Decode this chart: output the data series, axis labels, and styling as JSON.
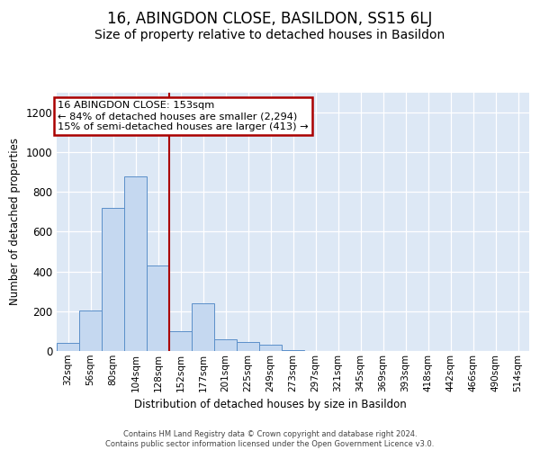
{
  "title": "16, ABINGDON CLOSE, BASILDON, SS15 6LJ",
  "subtitle": "Size of property relative to detached houses in Basildon",
  "xlabel": "Distribution of detached houses by size in Basildon",
  "ylabel": "Number of detached properties",
  "footer_line1": "Contains HM Land Registry data © Crown copyright and database right 2024.",
  "footer_line2": "Contains public sector information licensed under the Open Government Licence v3.0.",
  "annotation_line1": "16 ABINGDON CLOSE: 153sqm",
  "annotation_line2": "← 84% of detached houses are smaller (2,294)",
  "annotation_line3": "15% of semi-detached houses are larger (413) →",
  "bar_labels": [
    "32sqm",
    "56sqm",
    "80sqm",
    "104sqm",
    "128sqm",
    "152sqm",
    "177sqm",
    "201sqm",
    "225sqm",
    "249sqm",
    "273sqm",
    "297sqm",
    "321sqm",
    "345sqm",
    "369sqm",
    "393sqm",
    "418sqm",
    "442sqm",
    "466sqm",
    "490sqm",
    "514sqm"
  ],
  "bar_values": [
    40,
    205,
    720,
    875,
    430,
    100,
    240,
    60,
    45,
    30,
    5,
    0,
    0,
    0,
    0,
    0,
    0,
    0,
    0,
    0,
    0
  ],
  "bar_color": "#c5d8f0",
  "bar_edge_color": "#5b8fc9",
  "vline_color": "#aa0000",
  "vline_x": 4.5,
  "annotation_box_edgecolor": "#aa0000",
  "ylim": [
    0,
    1300
  ],
  "yticks": [
    0,
    200,
    400,
    600,
    800,
    1000,
    1200
  ],
  "bg_color": "#dde8f5",
  "title_fontsize": 12,
  "subtitle_fontsize": 10
}
